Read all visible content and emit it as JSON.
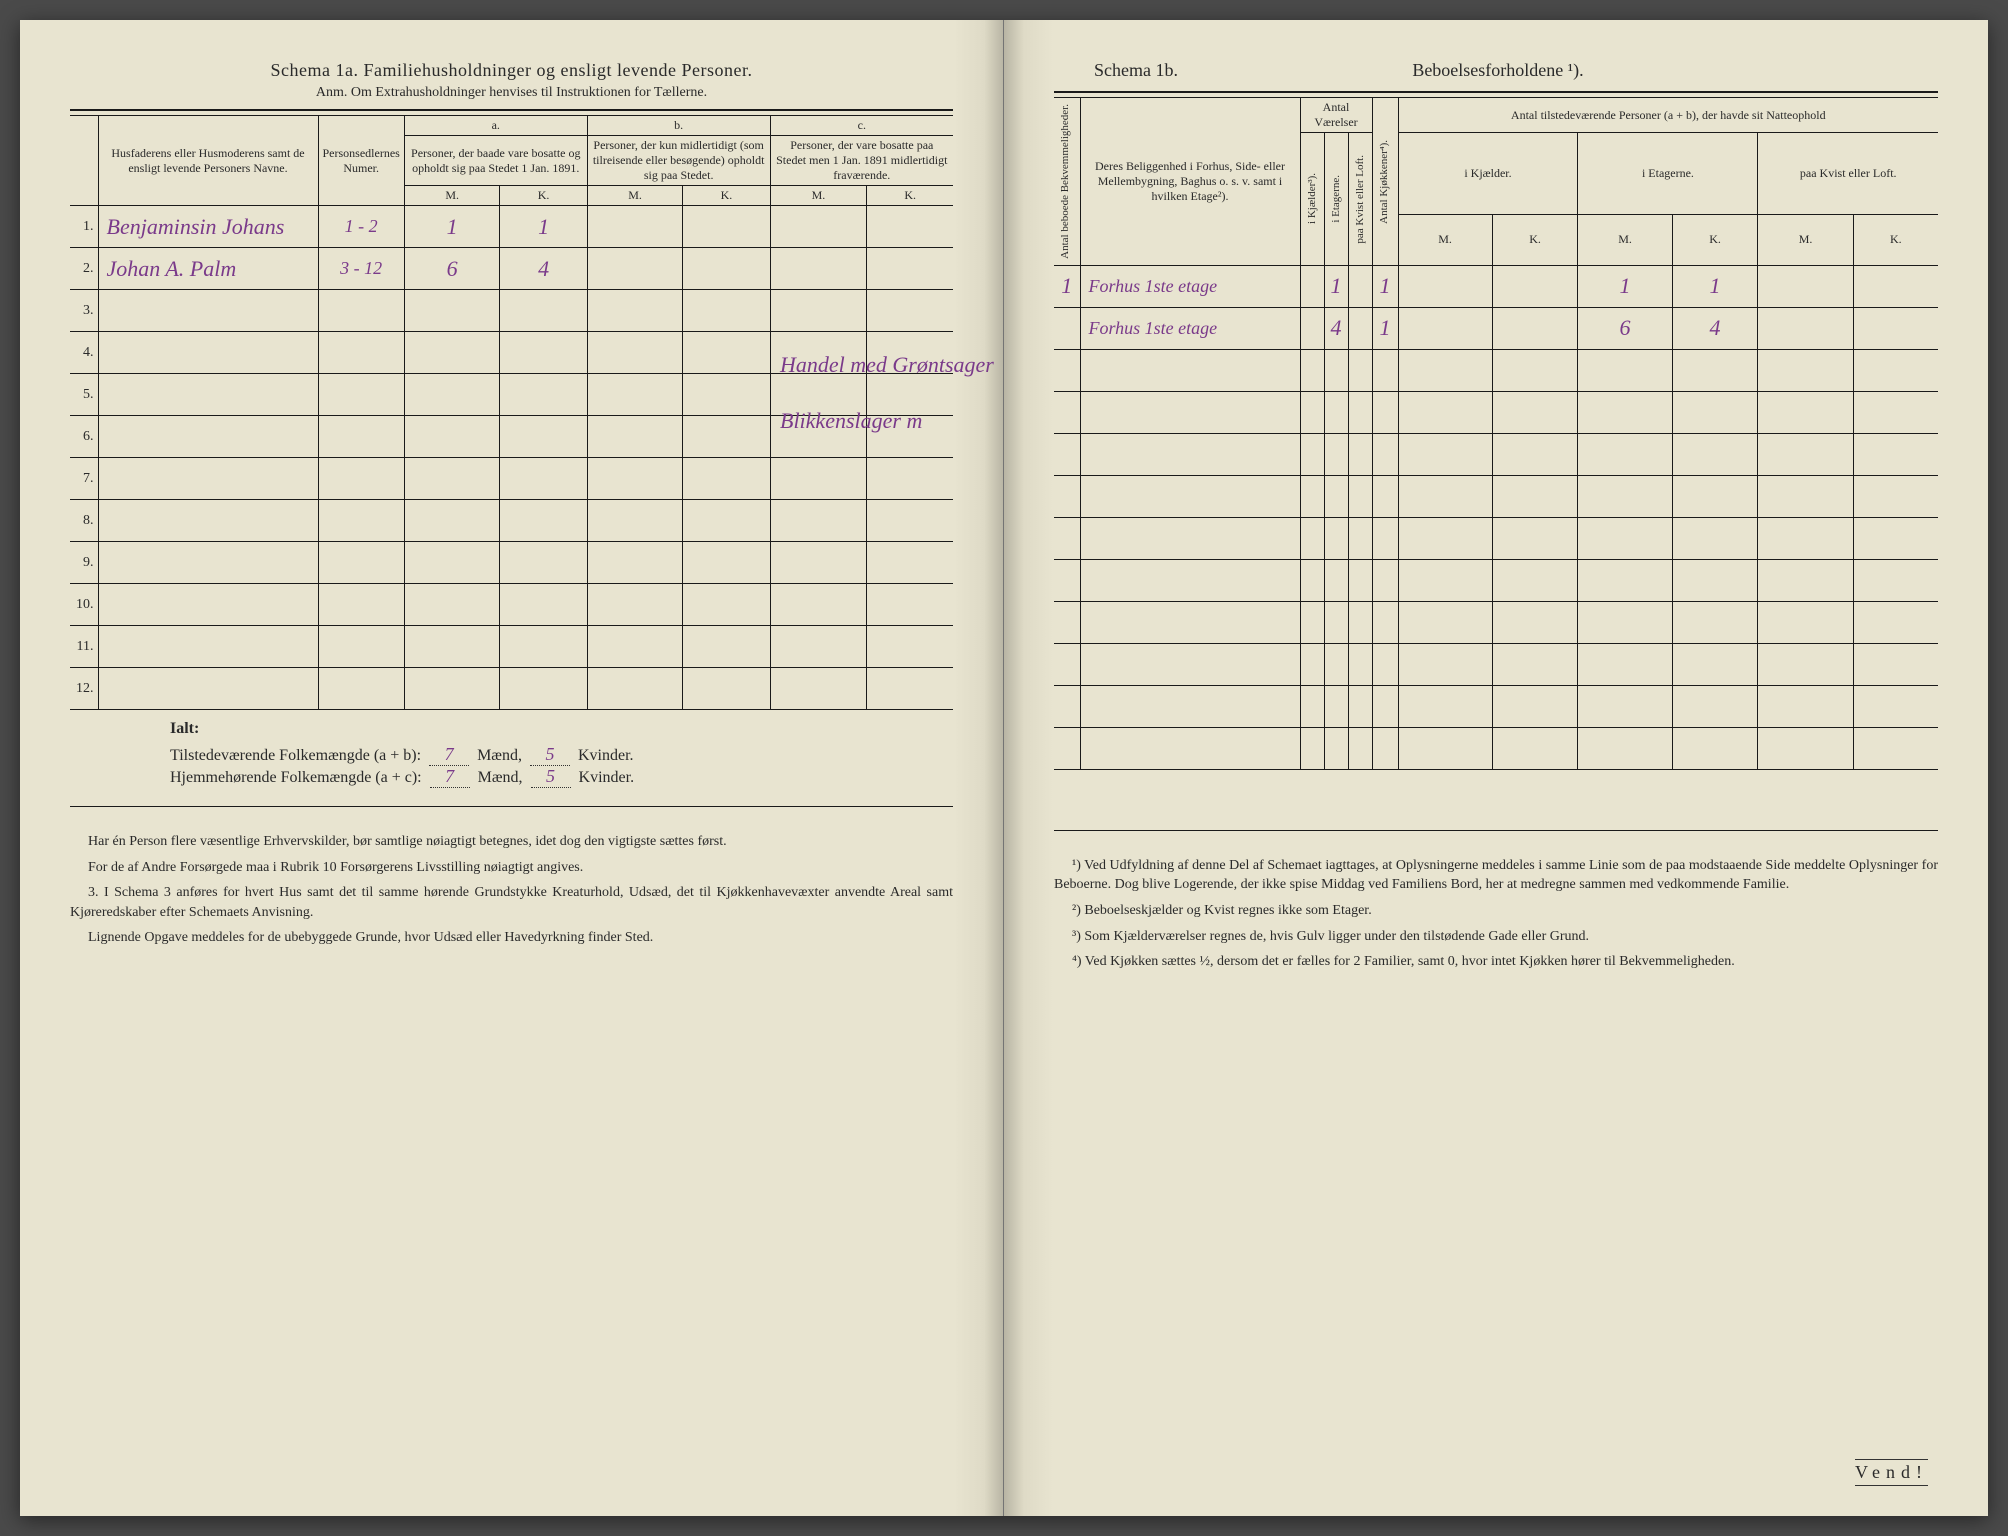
{
  "colors": {
    "paper": "#e8e4d0",
    "ink": "#1a1a1a",
    "handwriting": "#7a3a8a",
    "background": "#4a4a4a"
  },
  "typography": {
    "body_fontsize": 15,
    "header_fontsize": 18,
    "table_fontsize": 13,
    "hand_fontsize": 22,
    "notes_fontsize": 14
  },
  "left": {
    "title": "Schema 1a.  Familiehusholdninger og ensligt levende Personer.",
    "subtitle": "Anm. Om Extrahusholdninger henvises til Instruktionen for Tællerne.",
    "headers": {
      "col1": "Husfaderens eller Husmoderens samt de ensligt levende Personers Navne.",
      "col2": "Personsedlernes Numer.",
      "group_a": "a.",
      "group_a_text": "Personer, der baade vare bosatte og opholdt sig paa Stedet 1 Jan. 1891.",
      "group_b": "b.",
      "group_b_text": "Personer, der kun midlertidigt (som tilreisende eller besøgende) opholdt sig paa Stedet.",
      "group_c": "c.",
      "group_c_text": "Personer, der vare bosatte paa Stedet men 1 Jan. 1891 midlertidigt fraværende.",
      "m": "M.",
      "k": "K."
    },
    "rows": [
      {
        "n": "1.",
        "name": "Benjaminsin Johans",
        "sedler": "1 - 2",
        "aM": "1",
        "aK": "1",
        "bM": "",
        "bK": "",
        "cM": "",
        "cK": "",
        "occ": "Handel med Grøntsager"
      },
      {
        "n": "2.",
        "name": "Johan A. Palm",
        "sedler": "3 - 12",
        "aM": "6",
        "aK": "4",
        "bM": "",
        "bK": "",
        "cM": "",
        "cK": "",
        "occ": "Blikkenslager m"
      },
      {
        "n": "3.",
        "name": "",
        "sedler": "",
        "aM": "",
        "aK": "",
        "bM": "",
        "bK": "",
        "cM": "",
        "cK": ""
      },
      {
        "n": "4.",
        "name": "",
        "sedler": "",
        "aM": "",
        "aK": "",
        "bM": "",
        "bK": "",
        "cM": "",
        "cK": ""
      },
      {
        "n": "5.",
        "name": "",
        "sedler": "",
        "aM": "",
        "aK": "",
        "bM": "",
        "bK": "",
        "cM": "",
        "cK": ""
      },
      {
        "n": "6.",
        "name": "",
        "sedler": "",
        "aM": "",
        "aK": "",
        "bM": "",
        "bK": "",
        "cM": "",
        "cK": ""
      },
      {
        "n": "7.",
        "name": "",
        "sedler": "",
        "aM": "",
        "aK": "",
        "bM": "",
        "bK": "",
        "cM": "",
        "cK": ""
      },
      {
        "n": "8.",
        "name": "",
        "sedler": "",
        "aM": "",
        "aK": "",
        "bM": "",
        "bK": "",
        "cM": "",
        "cK": ""
      },
      {
        "n": "9.",
        "name": "",
        "sedler": "",
        "aM": "",
        "aK": "",
        "bM": "",
        "bK": "",
        "cM": "",
        "cK": ""
      },
      {
        "n": "10.",
        "name": "",
        "sedler": "",
        "aM": "",
        "aK": "",
        "bM": "",
        "bK": "",
        "cM": "",
        "cK": ""
      },
      {
        "n": "11.",
        "name": "",
        "sedler": "",
        "aM": "",
        "aK": "",
        "bM": "",
        "bK": "",
        "cM": "",
        "cK": ""
      },
      {
        "n": "12.",
        "name": "",
        "sedler": "",
        "aM": "",
        "aK": "",
        "bM": "",
        "bK": "",
        "cM": "",
        "cK": ""
      }
    ],
    "totals": {
      "ialt": "Ialt:",
      "line1_label_a": "Tilstedeværende Folkemængde (a + b): ",
      "line1_m": "7",
      "line1_mid": " Mænd, ",
      "line1_k": "5",
      "line1_end": " Kvinder.",
      "line2_label_a": "Hjemmehørende Folkemængde (a + c): ",
      "line2_m": "7",
      "line2_k": "5"
    },
    "notes": {
      "p1": "Har én Person flere væsentlige Erhvervskilder, bør samtlige nøiagtigt betegnes, idet dog den vigtigste sættes først.",
      "p2": "For de af Andre Forsørgede maa i Rubrik 10 Forsørgerens Livsstilling nøiagtigt angives.",
      "p3": "3. I Schema 3 anføres for hvert Hus samt det til samme hørende Grundstykke Kreaturhold, Udsæd, det til Kjøkkenhavevæxter anvendte Areal samt Kjøreredskaber efter Schemaets Anvisning.",
      "p4": "Lignende Opgave meddeles for de ubebyggede Grunde, hvor Udsæd eller Havedyrkning finder Sted."
    }
  },
  "right": {
    "title_left": "Schema 1b.",
    "title_right": "Beboelsesforholdene ¹).",
    "headers": {
      "col_bekv": "Antal beboede Bekvemmeligheder.",
      "col_belig": "Deres Beliggenhed i Forhus, Side- eller Mellembygning, Baghus o. s. v. samt i hvilken Etage²).",
      "group_vaer": "Antal Værelser",
      "v1": "i Kjælder³).",
      "v2": "i Etagerne.",
      "v3": "paa Kvist eller Loft.",
      "col_kjok": "Antal Kjøkkener⁴).",
      "group_pers": "Antal tilstedeværende Personer (a + b), der havde sit Natteophold",
      "p1": "i Kjælder.",
      "p2": "i Etagerne.",
      "p3": "paa Kvist eller Loft.",
      "m": "M.",
      "k": "K."
    },
    "rows": [
      {
        "bekv": "1",
        "belig": "Forhus 1ste etage",
        "v1": "",
        "v2": "1",
        "v3": "",
        "kjok": "1",
        "km": "",
        "kk": "",
        "em": "1",
        "ek": "1",
        "lm": "",
        "lk": ""
      },
      {
        "bekv": "",
        "belig": "Forhus 1ste etage",
        "v1": "",
        "v2": "4",
        "v3": "",
        "kjok": "1",
        "km": "",
        "kk": "",
        "em": "6",
        "ek": "4",
        "lm": "",
        "lk": ""
      },
      {
        "bekv": "",
        "belig": "",
        "v1": "",
        "v2": "",
        "v3": "",
        "kjok": "",
        "km": "",
        "kk": "",
        "em": "",
        "ek": "",
        "lm": "",
        "lk": ""
      },
      {
        "bekv": "",
        "belig": "",
        "v1": "",
        "v2": "",
        "v3": "",
        "kjok": "",
        "km": "",
        "kk": "",
        "em": "",
        "ek": "",
        "lm": "",
        "lk": ""
      },
      {
        "bekv": "",
        "belig": "",
        "v1": "",
        "v2": "",
        "v3": "",
        "kjok": "",
        "km": "",
        "kk": "",
        "em": "",
        "ek": "",
        "lm": "",
        "lk": ""
      },
      {
        "bekv": "",
        "belig": "",
        "v1": "",
        "v2": "",
        "v3": "",
        "kjok": "",
        "km": "",
        "kk": "",
        "em": "",
        "ek": "",
        "lm": "",
        "lk": ""
      },
      {
        "bekv": "",
        "belig": "",
        "v1": "",
        "v2": "",
        "v3": "",
        "kjok": "",
        "km": "",
        "kk": "",
        "em": "",
        "ek": "",
        "lm": "",
        "lk": ""
      },
      {
        "bekv": "",
        "belig": "",
        "v1": "",
        "v2": "",
        "v3": "",
        "kjok": "",
        "km": "",
        "kk": "",
        "em": "",
        "ek": "",
        "lm": "",
        "lk": ""
      },
      {
        "bekv": "",
        "belig": "",
        "v1": "",
        "v2": "",
        "v3": "",
        "kjok": "",
        "km": "",
        "kk": "",
        "em": "",
        "ek": "",
        "lm": "",
        "lk": ""
      },
      {
        "bekv": "",
        "belig": "",
        "v1": "",
        "v2": "",
        "v3": "",
        "kjok": "",
        "km": "",
        "kk": "",
        "em": "",
        "ek": "",
        "lm": "",
        "lk": ""
      },
      {
        "bekv": "",
        "belig": "",
        "v1": "",
        "v2": "",
        "v3": "",
        "kjok": "",
        "km": "",
        "kk": "",
        "em": "",
        "ek": "",
        "lm": "",
        "lk": ""
      },
      {
        "bekv": "",
        "belig": "",
        "v1": "",
        "v2": "",
        "v3": "",
        "kjok": "",
        "km": "",
        "kk": "",
        "em": "",
        "ek": "",
        "lm": "",
        "lk": ""
      }
    ],
    "notes": {
      "n1": "¹) Ved Udfyldning af denne Del af Schemaet iagttages, at Oplysningerne meddeles i samme Linie som de paa modstaaende Side meddelte Oplysninger for Beboerne. Dog blive Logerende, der ikke spise Middag ved Familiens Bord, her at medregne sammen med vedkommende Familie.",
      "n2": "²) Beboelseskjælder og Kvist regnes ikke som Etager.",
      "n3": "³) Som Kjælderværelser regnes de, hvis Gulv ligger under den tilstødende Gade eller Grund.",
      "n4": "⁴) Ved Kjøkken sættes ½, dersom det er fælles for 2 Familier, samt 0, hvor intet Kjøkken hører til Bekvemmeligheden."
    },
    "vend": "Vend!"
  }
}
